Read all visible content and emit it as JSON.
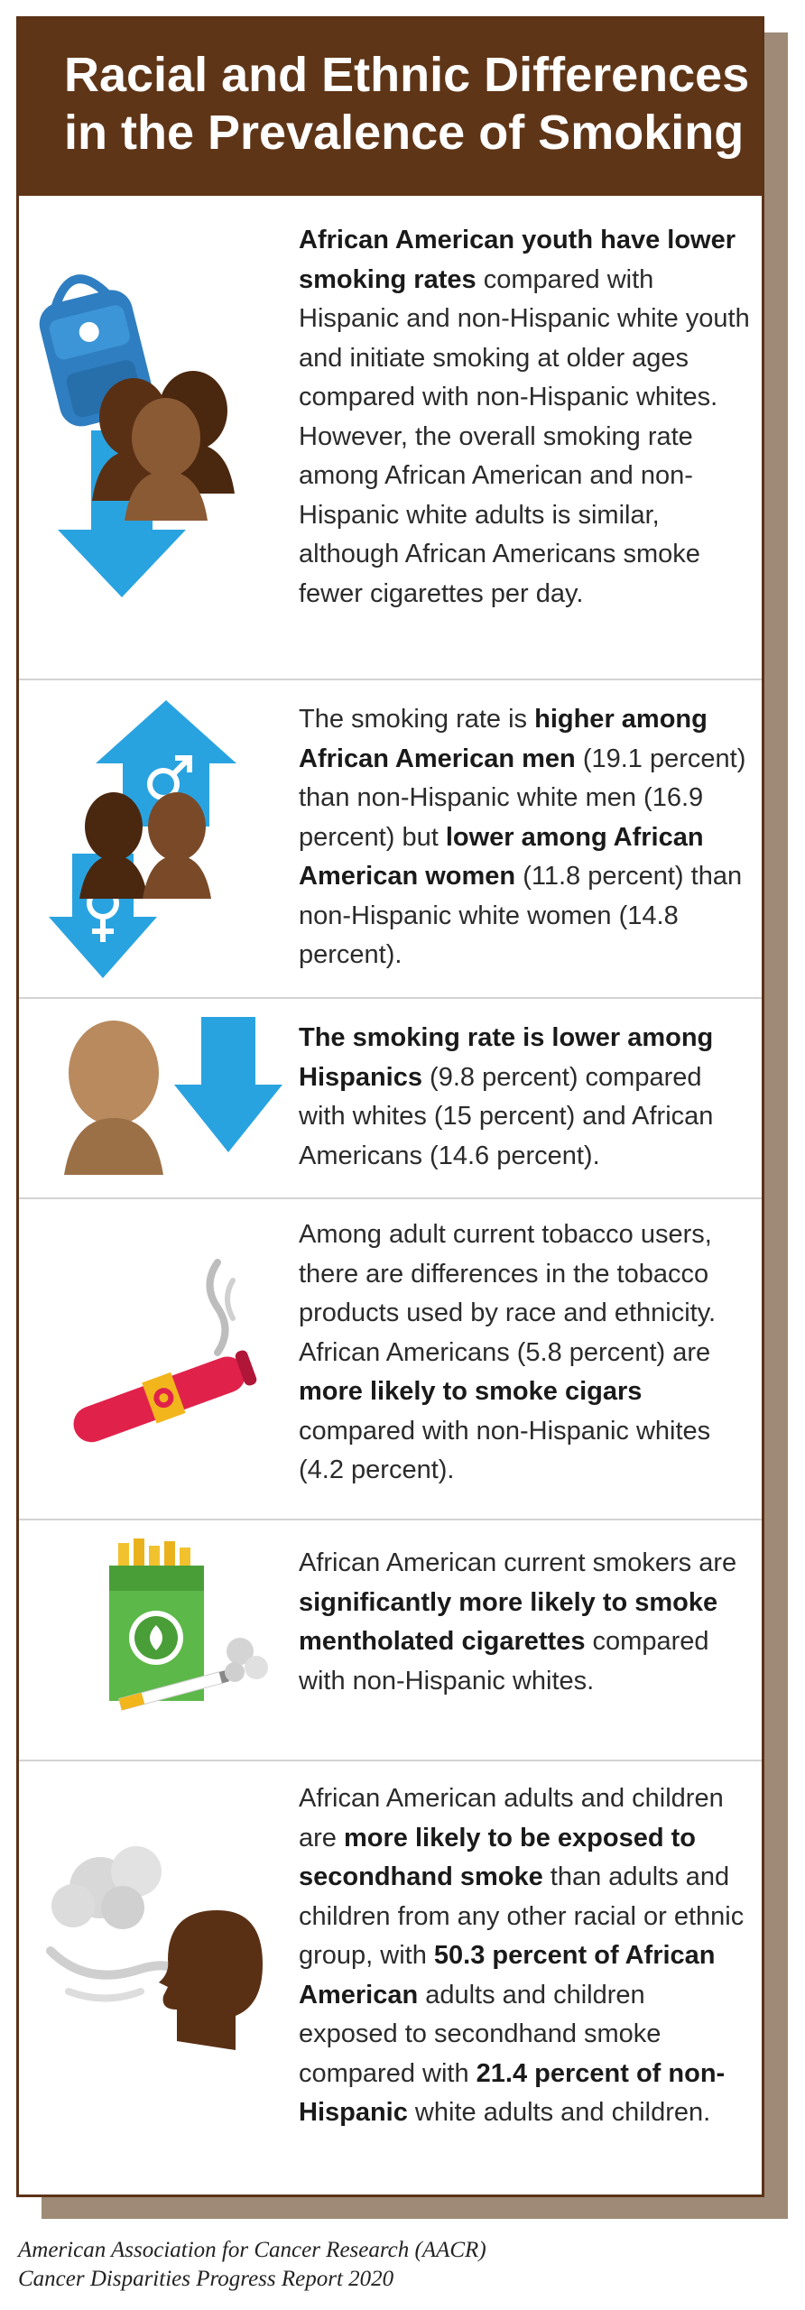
{
  "title": {
    "line1": "Racial and Ethnic Differences",
    "line2": "in the Prevalence of Smoking"
  },
  "sections": [
    {
      "parts": [
        {
          "b": true,
          "t": "African American youth have lower smoking rates"
        },
        {
          "b": false,
          "t": " compared with Hispanic and non-Hispanic white youth and initiate smoking at older ages compared with non-Hispanic whites. However, the overall smoking rate among African American and non-Hispanic white adults is similar, although African Americans smoke fewer cigarettes per day."
        }
      ]
    },
    {
      "parts": [
        {
          "b": false,
          "t": "The smoking rate is "
        },
        {
          "b": true,
          "t": "higher among African American men"
        },
        {
          "b": false,
          "t": " (19.1 percent) than non-Hispanic white men (16.9 percent) but "
        },
        {
          "b": true,
          "t": "lower among African American women"
        },
        {
          "b": false,
          "t": " (11.8 percent) than non-Hispanic white women (14.8 percent)."
        }
      ]
    },
    {
      "parts": [
        {
          "b": true,
          "t": "The smoking rate is lower among Hispanics"
        },
        {
          "b": false,
          "t": " (9.8 percent) compared with whites (15 percent) and African Americans (14.6 percent)."
        }
      ]
    },
    {
      "parts": [
        {
          "b": false,
          "t": "Among adult current tobacco users, there are differences in the tobacco products used by race and ethnicity. African Americans (5.8 percent) are "
        },
        {
          "b": true,
          "t": "more likely to smoke cigars"
        },
        {
          "b": false,
          "t": " compared with non-Hispanic whites (4.2 percent)."
        }
      ]
    },
    {
      "parts": [
        {
          "b": false,
          "t": "African American current smokers are "
        },
        {
          "b": true,
          "t": "significantly more likely to smoke mentholated cigarettes"
        },
        {
          "b": false,
          "t": " compared with non-Hispanic whites."
        }
      ]
    },
    {
      "parts": [
        {
          "b": false,
          "t": "African American adults and children are "
        },
        {
          "b": true,
          "t": "more likely to be exposed to secondhand smoke"
        },
        {
          "b": false,
          "t": " than adults and children from any other racial or ethnic group, with "
        },
        {
          "b": true,
          "t": "50.3 percent of African American"
        },
        {
          "b": false,
          "t": " adults and children exposed to secondhand smoke compared with "
        },
        {
          "b": true,
          "t": "21.4 percent of non-Hispanic"
        },
        {
          "b": false,
          "t": " white adults and children."
        }
      ]
    }
  ],
  "caption": {
    "line1": "American Association for Cancer Research (AACR)",
    "line2": "Cancer Disparities Progress Report 2020"
  },
  "colors": {
    "banner": "#5f3517",
    "arrow": "#29a3e0",
    "skin_dark": "#5a3015",
    "skin_medium": "#8a5a35",
    "skin_light": "#b98a5e",
    "cigar": "#e0224b",
    "menthol_green": "#5cb848"
  }
}
